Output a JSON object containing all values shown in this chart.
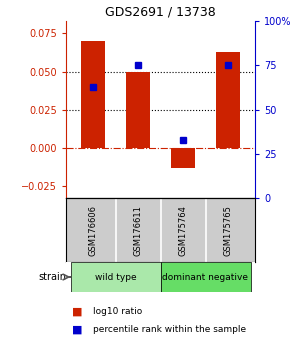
{
  "title": "GDS2691 / 13738",
  "samples": [
    "GSM176606",
    "GSM176611",
    "GSM175764",
    "GSM175765"
  ],
  "log10_ratio": [
    0.07,
    0.05,
    -0.013,
    0.063
  ],
  "percentile_pct": [
    63,
    75,
    33,
    75
  ],
  "groups": [
    {
      "label": "wild type",
      "samples": [
        0,
        1
      ],
      "color": "#aae8aa"
    },
    {
      "label": "dominant negative",
      "samples": [
        2,
        3
      ],
      "color": "#66dd66"
    }
  ],
  "group_label": "strain",
  "ylim_left": [
    -0.033,
    0.083
  ],
  "ylim_right": [
    0,
    100
  ],
  "yticks_left": [
    -0.025,
    0,
    0.025,
    0.05,
    0.075
  ],
  "yticks_right": [
    0,
    25,
    50,
    75,
    100
  ],
  "hlines": [
    0.025,
    0.05
  ],
  "bar_color": "#cc2200",
  "dot_color": "#0000cc",
  "zero_line_color": "#cc2200",
  "bg_color": "#ffffff",
  "label_color_left": "#cc2200",
  "label_color_right": "#0000cc",
  "bar_width": 0.55
}
